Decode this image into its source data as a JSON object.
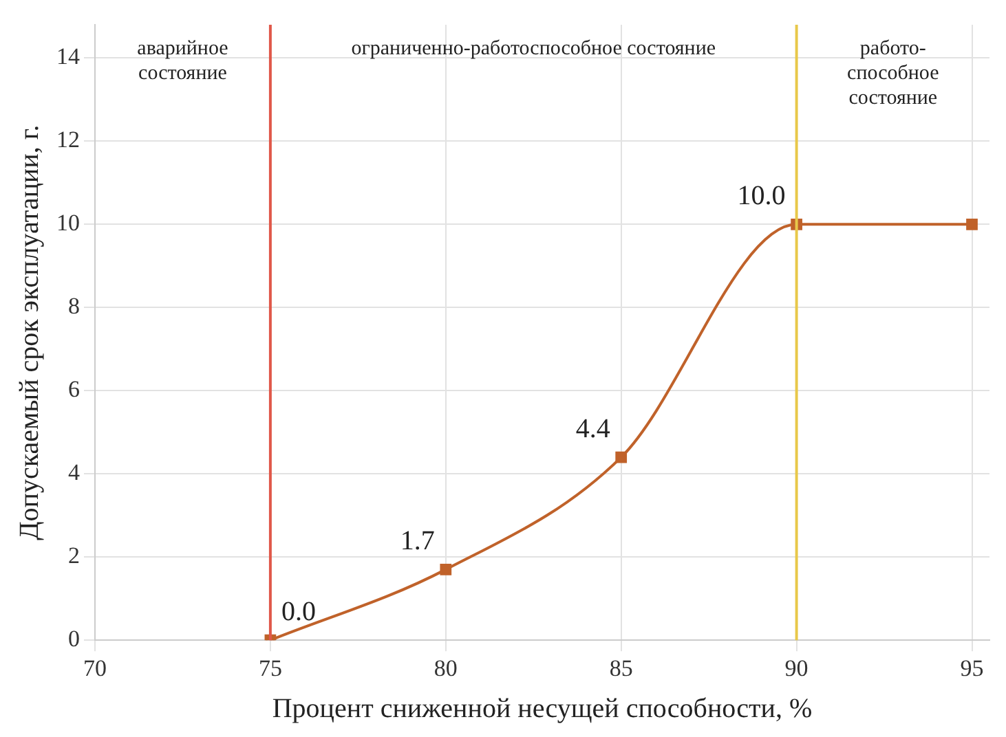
{
  "chart_data": {
    "type": "line",
    "xlabel": "Процент сниженной несущей способности, %",
    "ylabel": "Допускаемый срок эксплуатации, г.",
    "x": [
      75,
      80,
      85,
      90,
      95
    ],
    "series": [
      {
        "color": "#c0622a",
        "values": [
          0,
          1.7,
          4.4,
          10,
          10
        ],
        "value_labels": [
          "0.0",
          "1.7",
          "4.4",
          "10.0",
          null
        ]
      }
    ],
    "xlim": [
      70,
      95.5
    ],
    "ylim": [
      0,
      14.8
    ],
    "xticks": [
      70,
      75,
      80,
      85,
      90,
      95
    ],
    "yticks": [
      0,
      2,
      4,
      6,
      8,
      10,
      12,
      14
    ],
    "ref_lines": [
      {
        "axis": "x",
        "value": 75,
        "color": "#e0584a"
      },
      {
        "axis": "x",
        "value": 90,
        "color": "#e8c84a"
      }
    ],
    "annotations": [
      "аварийное\nсостояние",
      "ограниченно-работоспособное состояние",
      "работо-\nспособное\nсостояние"
    ],
    "grid": true,
    "marker": "square",
    "line_style": "solid",
    "legend": false
  }
}
